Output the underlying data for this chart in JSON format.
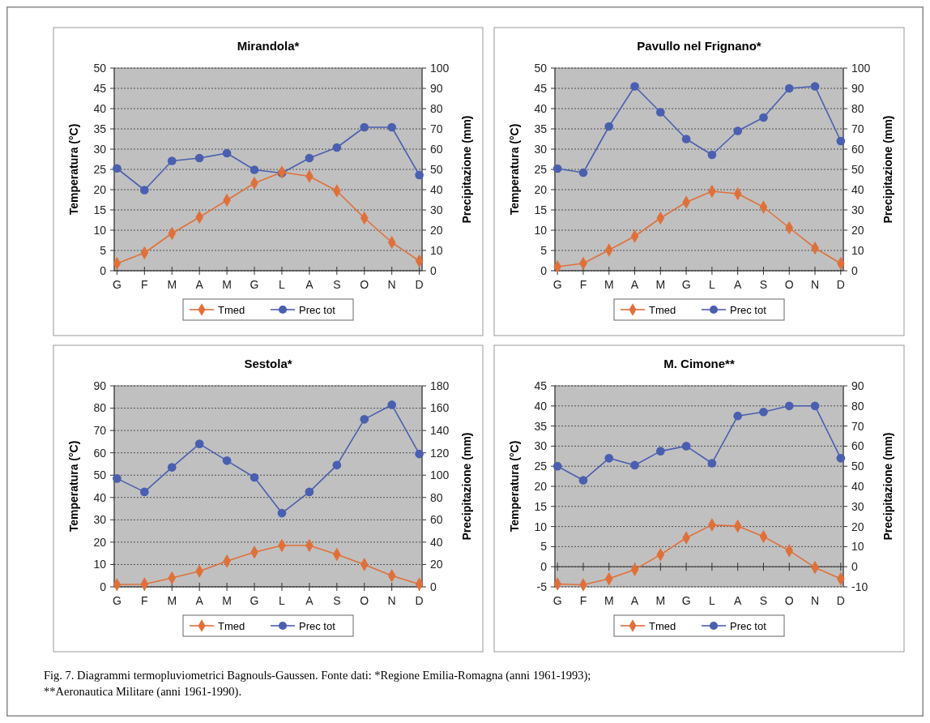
{
  "chart_data": [
    {
      "type": "line",
      "title": "Mirandola*",
      "categories": [
        "G",
        "F",
        "M",
        "A",
        "M",
        "G",
        "L",
        "A",
        "S",
        "O",
        "N",
        "D"
      ],
      "ylabel": "Temperatura (°C)",
      "y2label": "Precipitazione (mm)",
      "ylim": [
        0,
        50
      ],
      "yticks": [
        0,
        5,
        10,
        15,
        20,
        25,
        30,
        35,
        40,
        45,
        50
      ],
      "y2lim": [
        0,
        100
      ],
      "y2ticks": [
        0,
        10,
        20,
        30,
        40,
        50,
        60,
        70,
        80,
        90,
        100
      ],
      "grid": "y",
      "legend": "bottom",
      "series": [
        {
          "name": "Tmed",
          "color": "#e0703a",
          "marker": "diamond",
          "values": [
            1.8,
            4.4,
            9.2,
            13.2,
            17.4,
            21.6,
            24.3,
            23.3,
            19.7,
            13,
            7,
            2.4
          ]
        },
        {
          "name": "Prec tot",
          "color": "#4a5fb0",
          "marker": "circle",
          "axis": "y2",
          "values": [
            50.5,
            39.8,
            54.2,
            55.6,
            58,
            49.8,
            48.2,
            55.6,
            60.8,
            70.8,
            70.8,
            47.2
          ]
        }
      ]
    },
    {
      "type": "line",
      "title": "Pavullo nel Frignano*",
      "categories": [
        "G",
        "F",
        "M",
        "A",
        "M",
        "G",
        "L",
        "A",
        "S",
        "O",
        "N",
        "D"
      ],
      "ylabel": "Temperatura (°C)",
      "y2label": "Precipitazione (mm)",
      "ylim": [
        0,
        50
      ],
      "yticks": [
        0,
        5,
        10,
        15,
        20,
        25,
        30,
        35,
        40,
        45,
        50
      ],
      "y2lim": [
        0,
        100
      ],
      "y2ticks": [
        0,
        10,
        20,
        30,
        40,
        50,
        60,
        70,
        80,
        90,
        100
      ],
      "grid": "y",
      "legend": "bottom",
      "series": [
        {
          "name": "Tmed",
          "color": "#e0703a",
          "marker": "diamond",
          "values": [
            1,
            1.8,
            5.1,
            8.5,
            13,
            16.9,
            19.6,
            19,
            15.7,
            10.6,
            5.6,
            1.8
          ]
        },
        {
          "name": "Prec tot",
          "color": "#4a5fb0",
          "marker": "circle",
          "axis": "y2",
          "values": [
            50.4,
            48.4,
            71.2,
            91,
            78.2,
            65,
            57.2,
            69,
            75.6,
            90,
            91,
            64
          ]
        }
      ]
    },
    {
      "type": "line",
      "title": "Sestola*",
      "categories": [
        "G",
        "F",
        "M",
        "A",
        "M",
        "G",
        "L",
        "A",
        "S",
        "O",
        "N",
        "D"
      ],
      "ylabel": "Temperatura (°C)",
      "y2label": "Precipitazione (mm)",
      "ylim": [
        0,
        90
      ],
      "yticks": [
        0,
        10,
        20,
        30,
        40,
        50,
        60,
        70,
        80,
        90
      ],
      "y2lim": [
        0,
        180
      ],
      "y2ticks": [
        0,
        20,
        40,
        60,
        80,
        100,
        120,
        140,
        160,
        180
      ],
      "grid": "y",
      "legend": "bottom",
      "series": [
        {
          "name": "Tmed",
          "color": "#e0703a",
          "marker": "diamond",
          "values": [
            1,
            1.2,
            4,
            7,
            11.5,
            15.5,
            18.5,
            18.5,
            14.5,
            10,
            5,
            1.2
          ]
        },
        {
          "name": "Prec tot",
          "color": "#4a5fb0",
          "marker": "circle",
          "axis": "y2",
          "values": [
            97,
            85,
            107,
            128,
            113,
            98,
            66,
            85,
            109,
            150,
            163,
            119
          ]
        }
      ]
    },
    {
      "type": "line",
      "title": "M. Cimone**",
      "categories": [
        "G",
        "F",
        "M",
        "A",
        "M",
        "G",
        "L",
        "A",
        "S",
        "O",
        "N",
        "D"
      ],
      "ylabel": "Temperatura (°C)",
      "y2label": "Precipitazione (mm)",
      "ylim": [
        -5,
        45
      ],
      "yticks": [
        -5,
        0,
        5,
        10,
        15,
        20,
        25,
        30,
        35,
        40,
        45
      ],
      "y2lim": [
        -10,
        90
      ],
      "y2ticks": [
        -10,
        0,
        10,
        20,
        30,
        40,
        50,
        60,
        70,
        80,
        90
      ],
      "grid": "y",
      "legend": "bottom",
      "series": [
        {
          "name": "Tmed",
          "color": "#e0703a",
          "marker": "diamond",
          "values": [
            -4.3,
            -4.5,
            -3,
            -0.7,
            3,
            7.2,
            10.4,
            10.1,
            7.5,
            4,
            -0.2,
            -3
          ]
        },
        {
          "name": "Prec tot",
          "color": "#4a5fb0",
          "marker": "circle",
          "axis": "y2",
          "values": [
            50,
            43,
            54,
            50.5,
            57.5,
            60,
            51.5,
            75,
            77,
            80,
            80,
            54
          ]
        }
      ],
      "annotations": [
        "Fig. 7. Diagrammi termopluviometrici Bagnouls-Gaussen. Fonte dati: *Regione Emilia-Romagna (anni 1961-1993);",
        "**Aeronautica Militare (anni 1961-1990)."
      ]
    }
  ]
}
